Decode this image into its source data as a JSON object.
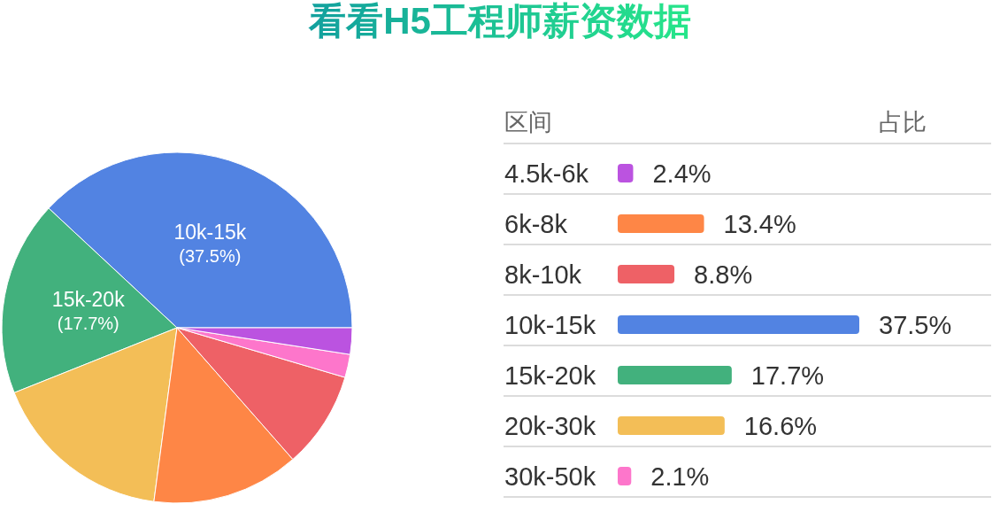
{
  "chart_data": [
    {
      "type": "pie",
      "title": "看看H5工程师薪资数据",
      "categories": [
        "10k-15k",
        "15k-20k",
        null,
        null,
        null,
        null,
        null
      ],
      "values": [
        37.5,
        17.7,
        16.6,
        13.4,
        8.8,
        2.1,
        2.4
      ],
      "colors": [
        "#5283e2",
        "#42b17d",
        "#f3be57",
        "#fe8646",
        "#ee6166",
        "#fd76cb",
        "#bb53e0"
      ],
      "value_labels": [
        "(37.5%)",
        "(17.7%)",
        null,
        null,
        null,
        null,
        null
      ]
    },
    {
      "type": "bar",
      "orientation": "horizontal",
      "ylabel": "区间",
      "xlabel": "占比",
      "categories": [
        "4.5k-6k",
        "6k-8k",
        "8k-10k",
        "10k-15k",
        "15k-20k",
        "20k-30k",
        "30k-50k"
      ],
      "values": [
        2.4,
        13.4,
        8.8,
        37.5,
        17.7,
        16.6,
        2.1
      ],
      "colors": [
        "#bb53e0",
        "#fe8646",
        "#ee6166",
        "#5283e2",
        "#42b17d",
        "#f3be57",
        "#fd76cb"
      ],
      "value_labels": [
        "2.4%",
        "13.4%",
        "8.8%",
        "37.5%",
        "17.7%",
        "16.6%",
        "2.1%"
      ]
    }
  ]
}
